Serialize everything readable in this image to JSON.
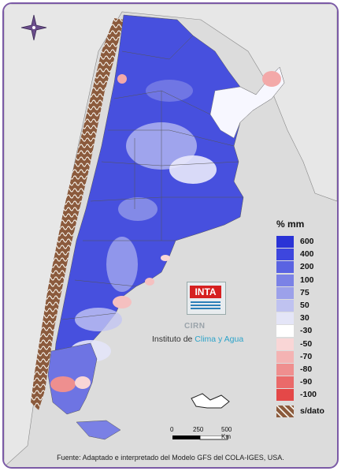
{
  "legend": {
    "title": "% mm",
    "items": [
      {
        "label": "600",
        "color": "#2a33d6"
      },
      {
        "label": "400",
        "color": "#3d46de"
      },
      {
        "label": "200",
        "color": "#5a63e2"
      },
      {
        "label": "100",
        "color": "#7b82e6"
      },
      {
        "label": "75",
        "color": "#9ca1ea"
      },
      {
        "label": "50",
        "color": "#bfc2f0"
      },
      {
        "label": "30",
        "color": "#e4e5f7"
      },
      {
        "label": "-30",
        "color": "#ffffff"
      },
      {
        "label": "-50",
        "color": "#f9d6d6"
      },
      {
        "label": "-70",
        "color": "#f4b3b3"
      },
      {
        "label": "-80",
        "color": "#ef8f8f"
      },
      {
        "label": "-90",
        "color": "#ea6a6a"
      },
      {
        "label": "-100",
        "color": "#e44848"
      }
    ],
    "nodata_label": "s/dato"
  },
  "logo": {
    "brand": "INTA",
    "center": "CIRN",
    "institute_prefix": "Instituto de ",
    "institute_highlight": "Clima y Agua"
  },
  "scalebar": {
    "labels": [
      "0",
      "250",
      "500 Km"
    ]
  },
  "footer": "Fuente: Adaptado e interpretado del Modelo GFS del COLA-IGES, USA.",
  "colors": {
    "frame": "#7b5aa6",
    "land": "#e4e4e4",
    "nodata": "#8b5a3c"
  },
  "icons": [
    "compass-rose-icon"
  ]
}
